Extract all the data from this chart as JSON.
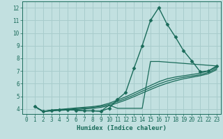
{
  "xlabel": "Humidex (Indice chaleur)",
  "bg_color": "#c2e0e0",
  "grid_color": "#a8cccc",
  "line_color": "#1a6b5a",
  "xlim": [
    -0.5,
    23.5
  ],
  "ylim": [
    3.6,
    12.5
  ],
  "xticks": [
    0,
    1,
    2,
    3,
    4,
    5,
    6,
    7,
    8,
    9,
    10,
    11,
    12,
    13,
    14,
    15,
    16,
    17,
    18,
    19,
    20,
    21,
    22,
    23
  ],
  "yticks": [
    4,
    5,
    6,
    7,
    8,
    9,
    10,
    11,
    12
  ],
  "series": [
    {
      "x": [
        1,
        2,
        3,
        4,
        5,
        6,
        7,
        8,
        9,
        10,
        11,
        12,
        13,
        14,
        15,
        16,
        17,
        18,
        19,
        20,
        21,
        22,
        23
      ],
      "y": [
        4.2,
        3.8,
        3.9,
        3.95,
        3.95,
        3.9,
        3.85,
        3.85,
        3.82,
        4.05,
        4.75,
        5.3,
        7.2,
        9.0,
        11.0,
        12.0,
        10.7,
        9.7,
        8.6,
        7.8,
        6.95,
        7.0,
        7.4
      ],
      "marker": "D",
      "markersize": 2.5,
      "linewidth": 1.0
    },
    {
      "x": [
        1,
        2,
        3,
        4,
        5,
        6,
        7,
        8,
        9,
        10,
        11,
        14,
        15,
        16,
        23
      ],
      "y": [
        4.2,
        3.8,
        3.9,
        3.95,
        3.95,
        3.9,
        3.85,
        3.85,
        3.82,
        4.3,
        4.05,
        4.05,
        7.75,
        7.75,
        7.4
      ],
      "marker": null,
      "linewidth": 0.9
    },
    {
      "x": [
        1,
        2,
        3,
        4,
        5,
        6,
        7,
        8,
        9,
        10,
        11,
        12,
        13,
        14,
        15,
        16,
        17,
        18,
        19,
        20,
        21,
        22,
        23
      ],
      "y": [
        4.2,
        3.8,
        3.88,
        3.96,
        4.02,
        4.08,
        4.13,
        4.18,
        4.27,
        4.45,
        4.7,
        4.95,
        5.25,
        5.55,
        5.85,
        6.15,
        6.38,
        6.52,
        6.62,
        6.72,
        6.82,
        7.0,
        7.3
      ],
      "marker": null,
      "linewidth": 0.9
    },
    {
      "x": [
        1,
        2,
        3,
        4,
        5,
        6,
        7,
        8,
        9,
        10,
        11,
        12,
        13,
        14,
        15,
        16,
        17,
        18,
        19,
        20,
        21,
        22,
        23
      ],
      "y": [
        4.2,
        3.8,
        3.86,
        3.92,
        3.97,
        4.02,
        4.07,
        4.12,
        4.2,
        4.35,
        4.58,
        4.82,
        5.1,
        5.4,
        5.68,
        5.97,
        6.2,
        6.37,
        6.5,
        6.6,
        6.7,
        6.88,
        7.2
      ],
      "marker": null,
      "linewidth": 0.9
    },
    {
      "x": [
        1,
        2,
        3,
        4,
        5,
        6,
        7,
        8,
        9,
        10,
        11,
        12,
        13,
        14,
        15,
        16,
        17,
        18,
        19,
        20,
        21,
        22,
        23
      ],
      "y": [
        4.2,
        3.8,
        3.84,
        3.88,
        3.92,
        3.96,
        4.0,
        4.04,
        4.12,
        4.25,
        4.47,
        4.7,
        4.97,
        5.25,
        5.53,
        5.8,
        6.03,
        6.22,
        6.38,
        6.5,
        6.62,
        6.78,
        7.1
      ],
      "marker": null,
      "linewidth": 0.9
    }
  ]
}
